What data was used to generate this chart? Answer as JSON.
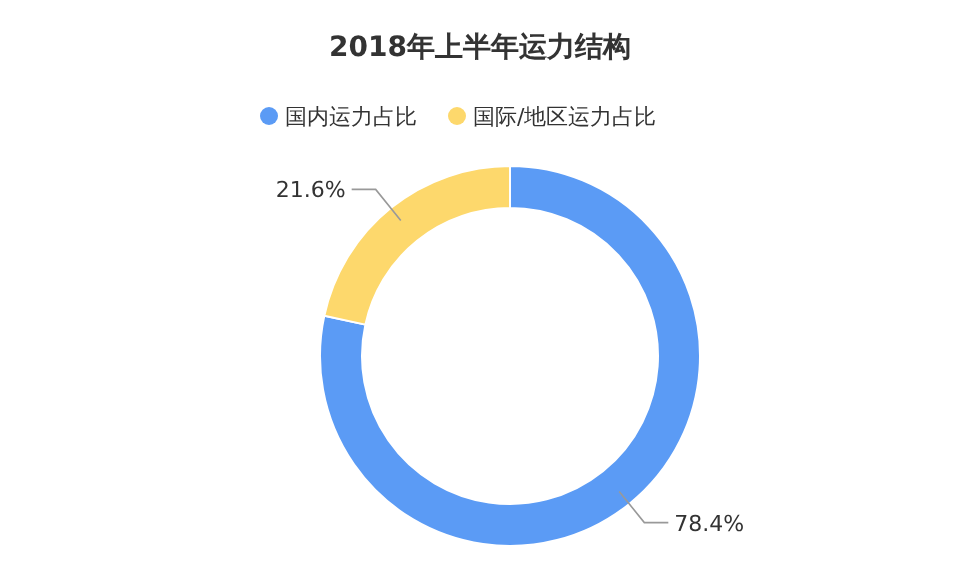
{
  "chart_data": {
    "type": "donut",
    "title": "2018年上半年运力结构",
    "categories": [
      "国内运力占比",
      "国际/地区运力占比"
    ],
    "values": [
      78.4,
      21.6
    ],
    "colors": [
      "#5b9bf5",
      "#fdd86c"
    ],
    "value_labels": [
      "78.4%",
      "21.6%"
    ],
    "legend": "top"
  }
}
